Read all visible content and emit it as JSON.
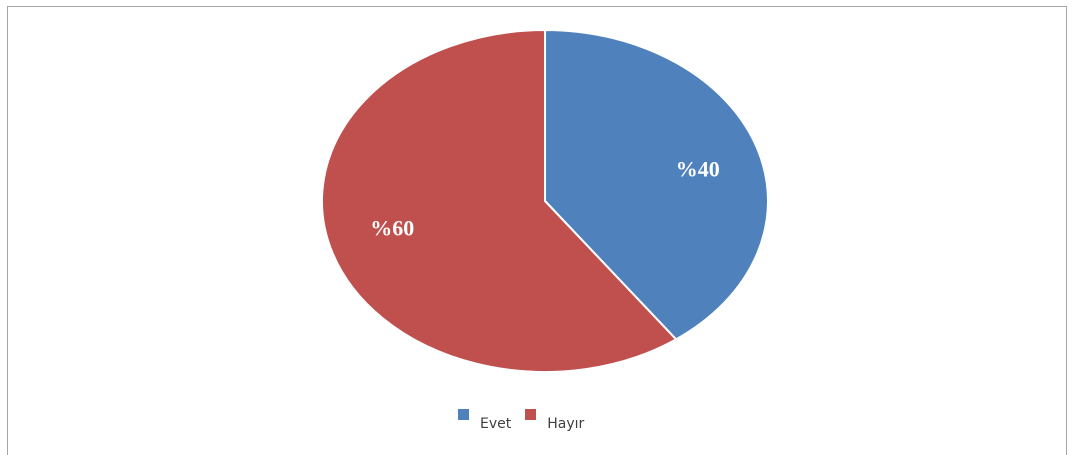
{
  "chart_data": {
    "type": "pie",
    "categories": [
      "Evet",
      "Hayır"
    ],
    "values": [
      40,
      60
    ],
    "data_labels": [
      "%40",
      "%60"
    ],
    "colors": [
      "#4f81bd",
      "#c0504d"
    ],
    "start_angle_deg": 0,
    "direction": "clockwise",
    "legend_position": "bottom",
    "title": ""
  }
}
